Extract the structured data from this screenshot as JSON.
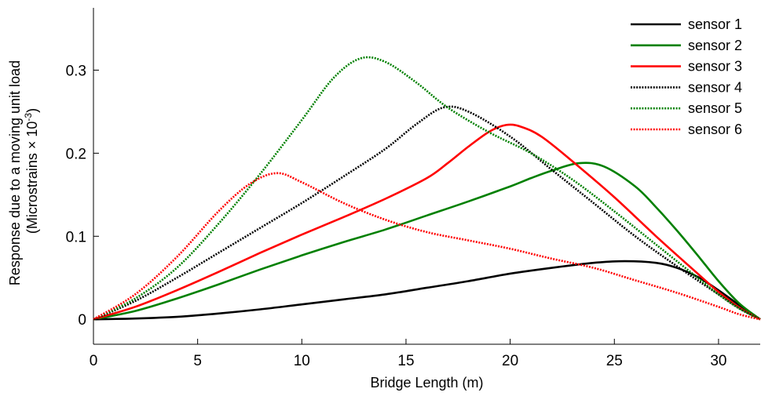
{
  "chart_data": {
    "type": "line",
    "title": "",
    "xlabel": "Bridge Length (m)",
    "ylabel_line1": "Response due to a moving unit load",
    "ylabel_line2_prefix": "(Microstrains × 10",
    "ylabel_line2_exponent": "-3",
    "ylabel_line2_suffix": ")",
    "xlim": [
      0,
      32
    ],
    "ylim": [
      -0.03,
      0.375
    ],
    "xticks": [
      0,
      5,
      10,
      15,
      20,
      25,
      30
    ],
    "yticks": [
      0,
      0.1,
      0.2,
      0.3
    ],
    "ytick_labels": [
      "0",
      "0.1",
      "0.2",
      "0.3"
    ],
    "grid": false,
    "legend_position": "top-right",
    "series": [
      {
        "name": "sensor 1",
        "color": "#000000",
        "style": "solid",
        "x": [
          0,
          2,
          4,
          6,
          8,
          10,
          12,
          14,
          16,
          18,
          20,
          22,
          24,
          25.5,
          27,
          28,
          29,
          30,
          31,
          32
        ],
        "y": [
          0,
          0.001,
          0.003,
          0.007,
          0.012,
          0.018,
          0.024,
          0.03,
          0.038,
          0.046,
          0.055,
          0.062,
          0.068,
          0.07,
          0.068,
          0.062,
          0.051,
          0.035,
          0.017,
          0
        ]
      },
      {
        "name": "sensor 2",
        "color": "#008000",
        "style": "solid",
        "x": [
          0,
          2,
          4,
          6,
          8,
          10,
          12,
          14,
          16,
          18,
          20,
          21,
          22,
          23.3,
          24.5,
          26,
          27,
          28,
          29,
          30,
          31,
          32
        ],
        "y": [
          0,
          0.01,
          0.025,
          0.042,
          0.06,
          0.077,
          0.093,
          0.108,
          0.125,
          0.142,
          0.16,
          0.17,
          0.179,
          0.188,
          0.184,
          0.16,
          0.135,
          0.107,
          0.077,
          0.046,
          0.019,
          0
        ]
      },
      {
        "name": "sensor 3",
        "color": "#ff0000",
        "style": "solid",
        "x": [
          0,
          2,
          4,
          6,
          8,
          10,
          12,
          14,
          16,
          17,
          18,
          19,
          19.8,
          20.5,
          21.5,
          23,
          25,
          27,
          29,
          30,
          31,
          32
        ],
        "y": [
          0,
          0.015,
          0.035,
          0.057,
          0.08,
          0.102,
          0.123,
          0.145,
          0.17,
          0.188,
          0.208,
          0.226,
          0.234,
          0.232,
          0.22,
          0.19,
          0.147,
          0.1,
          0.055,
          0.033,
          0.014,
          0
        ]
      },
      {
        "name": "sensor 4",
        "color": "#000000",
        "style": "dotted",
        "x": [
          0,
          2,
          4,
          6,
          8,
          10,
          12,
          14,
          15.5,
          16.8,
          18,
          20,
          22,
          24,
          26,
          28,
          30,
          31,
          32
        ],
        "y": [
          0,
          0.022,
          0.05,
          0.08,
          0.11,
          0.14,
          0.172,
          0.205,
          0.235,
          0.255,
          0.25,
          0.22,
          0.18,
          0.14,
          0.1,
          0.064,
          0.03,
          0.013,
          0
        ]
      },
      {
        "name": "sensor 5",
        "color": "#008000",
        "style": "dotted",
        "x": [
          0,
          2,
          4,
          6,
          8,
          10,
          11.5,
          12.8,
          14,
          15.5,
          17,
          19,
          21,
          23,
          25,
          27,
          29,
          30,
          31,
          32
        ],
        "y": [
          0,
          0.025,
          0.062,
          0.115,
          0.175,
          0.24,
          0.29,
          0.314,
          0.31,
          0.285,
          0.255,
          0.225,
          0.2,
          0.168,
          0.13,
          0.09,
          0.05,
          0.03,
          0.013,
          0
        ]
      },
      {
        "name": "sensor 6",
        "color": "#ff0000",
        "style": "dotted",
        "x": [
          0,
          2,
          4,
          6,
          7.5,
          8.8,
          10,
          12,
          14,
          16,
          18,
          20,
          22,
          24,
          26,
          28,
          30,
          31,
          32
        ],
        "y": [
          0,
          0.03,
          0.075,
          0.13,
          0.163,
          0.176,
          0.165,
          0.14,
          0.12,
          0.105,
          0.095,
          0.085,
          0.073,
          0.062,
          0.047,
          0.032,
          0.015,
          0.006,
          0
        ]
      }
    ]
  }
}
